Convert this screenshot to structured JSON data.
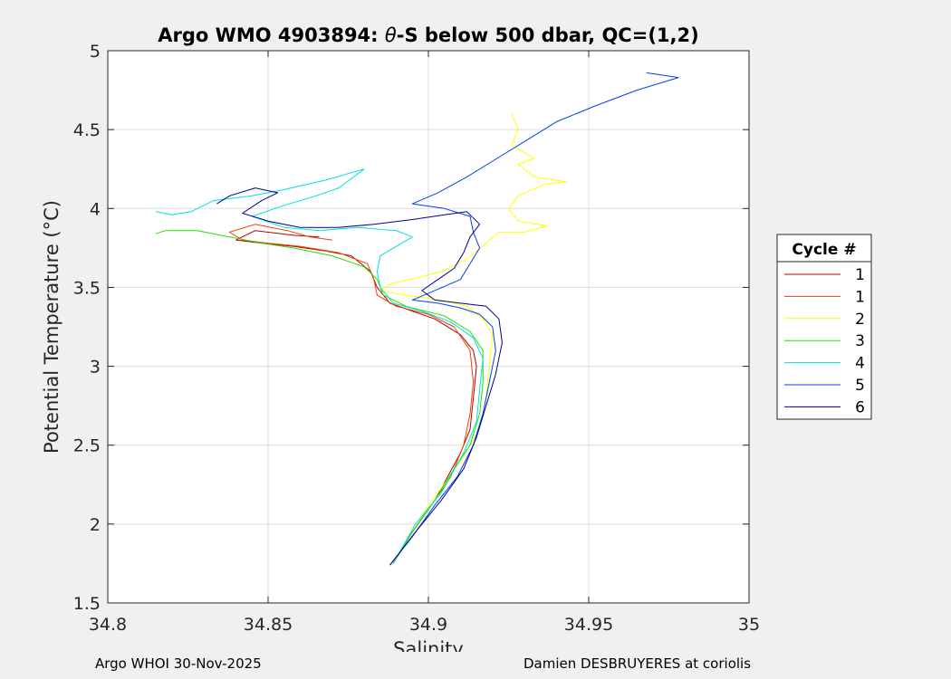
{
  "chart_data": {
    "type": "line",
    "title_prefix": "Argo WMO 4903894: ",
    "title_symbol": "θ",
    "title_suffix": "-S below 500 dbar,  QC=(1,2)",
    "xlabel": "Salinity",
    "ylabel": "Potential Temperature (°C)",
    "xlim": [
      34.8,
      35.0
    ],
    "ylim": [
      1.5,
      5.0
    ],
    "xticks": [
      "34.8",
      "34.85",
      "34.9",
      "34.95",
      "35"
    ],
    "yticks": [
      "1.5",
      "2",
      "2.5",
      "3",
      "3.5",
      "4",
      "4.5",
      "5"
    ],
    "grid": true,
    "legend": {
      "title": "Cycle #",
      "position": "right"
    },
    "series": [
      {
        "name": "1",
        "color": "#b80000",
        "points": [
          [
            34.889,
            1.75
          ],
          [
            34.895,
            1.95
          ],
          [
            34.902,
            2.15
          ],
          [
            34.906,
            2.3
          ],
          [
            34.91,
            2.45
          ],
          [
            34.913,
            2.6
          ],
          [
            34.914,
            2.8
          ],
          [
            34.915,
            3.0
          ],
          [
            34.914,
            3.1
          ],
          [
            34.91,
            3.2
          ],
          [
            34.902,
            3.3
          ],
          [
            34.895,
            3.35
          ],
          [
            34.888,
            3.4
          ],
          [
            34.884,
            3.5
          ],
          [
            34.882,
            3.6
          ],
          [
            34.876,
            3.7
          ],
          [
            34.868,
            3.73
          ],
          [
            34.858,
            3.76
          ],
          [
            34.848,
            3.78
          ],
          [
            34.84,
            3.8
          ],
          [
            34.846,
            3.86
          ],
          [
            34.858,
            3.83
          ],
          [
            34.866,
            3.82
          ]
        ]
      },
      {
        "name": "1",
        "color": "#f04000",
        "points": [
          [
            34.889,
            1.75
          ],
          [
            34.895,
            1.95
          ],
          [
            34.902,
            2.15
          ],
          [
            34.907,
            2.3
          ],
          [
            34.911,
            2.5
          ],
          [
            34.913,
            2.7
          ],
          [
            34.914,
            2.9
          ],
          [
            34.913,
            3.1
          ],
          [
            34.908,
            3.25
          ],
          [
            34.9,
            3.33
          ],
          [
            34.89,
            3.38
          ],
          [
            34.884,
            3.45
          ],
          [
            34.883,
            3.55
          ],
          [
            34.881,
            3.65
          ],
          [
            34.872,
            3.72
          ],
          [
            34.86,
            3.76
          ],
          [
            34.85,
            3.78
          ],
          [
            34.842,
            3.8
          ],
          [
            34.838,
            3.85
          ],
          [
            34.846,
            3.9
          ],
          [
            34.856,
            3.86
          ],
          [
            34.863,
            3.82
          ],
          [
            34.87,
            3.8
          ]
        ]
      },
      {
        "name": "2",
        "color": "#ffff00",
        "points": [
          [
            34.889,
            1.75
          ],
          [
            34.896,
            2.0
          ],
          [
            34.903,
            2.2
          ],
          [
            34.91,
            2.4
          ],
          [
            34.916,
            2.6
          ],
          [
            34.918,
            2.8
          ],
          [
            34.919,
            3.0
          ],
          [
            34.92,
            3.2
          ],
          [
            34.917,
            3.3
          ],
          [
            34.912,
            3.38
          ],
          [
            34.904,
            3.42
          ],
          [
            34.893,
            3.45
          ],
          [
            34.885,
            3.48
          ],
          [
            34.888,
            3.52
          ],
          [
            34.896,
            3.56
          ],
          [
            34.904,
            3.6
          ],
          [
            34.912,
            3.68
          ],
          [
            34.918,
            3.78
          ],
          [
            34.922,
            3.85
          ],
          [
            34.93,
            3.85
          ],
          [
            34.937,
            3.89
          ],
          [
            34.928,
            3.92
          ],
          [
            34.925,
            4.0
          ],
          [
            34.928,
            4.08
          ],
          [
            34.936,
            4.15
          ],
          [
            34.943,
            4.17
          ],
          [
            34.933,
            4.2
          ],
          [
            34.928,
            4.28
          ],
          [
            34.933,
            4.32
          ],
          [
            34.926,
            4.4
          ],
          [
            34.928,
            4.5
          ],
          [
            34.926,
            4.6
          ]
        ]
      },
      {
        "name": "3",
        "color": "#20e000",
        "points": [
          [
            34.889,
            1.75
          ],
          [
            34.895,
            1.95
          ],
          [
            34.902,
            2.15
          ],
          [
            34.908,
            2.35
          ],
          [
            34.913,
            2.5
          ],
          [
            34.916,
            2.7
          ],
          [
            34.917,
            2.9
          ],
          [
            34.917,
            3.1
          ],
          [
            34.913,
            3.22
          ],
          [
            34.905,
            3.32
          ],
          [
            34.893,
            3.38
          ],
          [
            34.886,
            3.45
          ],
          [
            34.884,
            3.55
          ],
          [
            34.88,
            3.63
          ],
          [
            34.87,
            3.7
          ],
          [
            34.858,
            3.75
          ],
          [
            34.848,
            3.78
          ],
          [
            34.838,
            3.82
          ],
          [
            34.828,
            3.86
          ],
          [
            34.818,
            3.86
          ],
          [
            34.815,
            3.84
          ]
        ]
      },
      {
        "name": "4",
        "color": "#00e0e0",
        "points": [
          [
            34.889,
            1.75
          ],
          [
            34.896,
            2.0
          ],
          [
            34.904,
            2.2
          ],
          [
            34.911,
            2.45
          ],
          [
            34.915,
            2.65
          ],
          [
            34.916,
            2.85
          ],
          [
            34.917,
            3.05
          ],
          [
            34.914,
            3.18
          ],
          [
            34.907,
            3.28
          ],
          [
            34.898,
            3.35
          ],
          [
            34.889,
            3.4
          ],
          [
            34.885,
            3.5
          ],
          [
            34.884,
            3.6
          ],
          [
            34.885,
            3.7
          ],
          [
            34.895,
            3.82
          ],
          [
            34.89,
            3.86
          ],
          [
            34.878,
            3.88
          ],
          [
            34.866,
            3.86
          ],
          [
            34.855,
            3.88
          ],
          [
            34.845,
            3.95
          ],
          [
            34.855,
            4.02
          ],
          [
            34.865,
            4.08
          ],
          [
            34.872,
            4.13
          ],
          [
            34.88,
            4.25
          ],
          [
            34.868,
            4.18
          ],
          [
            34.855,
            4.12
          ],
          [
            34.845,
            4.08
          ],
          [
            34.833,
            4.05
          ],
          [
            34.826,
            3.98
          ],
          [
            34.82,
            3.96
          ],
          [
            34.815,
            3.98
          ]
        ]
      },
      {
        "name": "5",
        "color": "#0040f0",
        "points": [
          [
            34.888,
            1.74
          ],
          [
            34.895,
            1.92
          ],
          [
            34.902,
            2.12
          ],
          [
            34.909,
            2.3
          ],
          [
            34.914,
            2.5
          ],
          [
            34.917,
            2.7
          ],
          [
            34.919,
            2.9
          ],
          [
            34.921,
            3.1
          ],
          [
            34.92,
            3.25
          ],
          [
            34.916,
            3.33
          ],
          [
            34.91,
            3.37
          ],
          [
            34.903,
            3.4
          ],
          [
            34.895,
            3.42
          ],
          [
            34.902,
            3.48
          ],
          [
            34.91,
            3.55
          ],
          [
            34.913,
            3.65
          ],
          [
            34.916,
            3.75
          ],
          [
            34.914,
            3.85
          ],
          [
            34.913,
            3.95
          ],
          [
            34.905,
            4.0
          ],
          [
            34.895,
            4.03
          ],
          [
            34.903,
            4.1
          ],
          [
            34.912,
            4.2
          ],
          [
            34.92,
            4.3
          ],
          [
            34.932,
            4.45
          ],
          [
            34.94,
            4.55
          ],
          [
            34.952,
            4.65
          ],
          [
            34.965,
            4.75
          ],
          [
            34.978,
            4.83
          ],
          [
            34.968,
            4.86
          ]
        ]
      },
      {
        "name": "6",
        "color": "#000090",
        "points": [
          [
            34.888,
            1.74
          ],
          [
            34.896,
            1.95
          ],
          [
            34.904,
            2.15
          ],
          [
            34.911,
            2.35
          ],
          [
            34.915,
            2.55
          ],
          [
            34.918,
            2.75
          ],
          [
            34.921,
            2.95
          ],
          [
            34.923,
            3.15
          ],
          [
            34.922,
            3.3
          ],
          [
            34.918,
            3.38
          ],
          [
            34.91,
            3.4
          ],
          [
            34.902,
            3.42
          ],
          [
            34.898,
            3.48
          ],
          [
            34.903,
            3.55
          ],
          [
            34.908,
            3.62
          ],
          [
            34.911,
            3.72
          ],
          [
            34.913,
            3.82
          ],
          [
            34.916,
            3.9
          ],
          [
            34.912,
            3.98
          ],
          [
            34.905,
            3.96
          ],
          [
            34.895,
            3.93
          ],
          [
            34.883,
            3.9
          ],
          [
            34.872,
            3.88
          ],
          [
            34.86,
            3.88
          ],
          [
            34.85,
            3.92
          ],
          [
            34.842,
            3.97
          ],
          [
            34.848,
            4.05
          ],
          [
            34.853,
            4.1
          ],
          [
            34.846,
            4.13
          ],
          [
            34.838,
            4.08
          ],
          [
            34.834,
            4.03
          ]
        ]
      }
    ]
  },
  "footer": {
    "left": "Argo WHOI 30-Nov-2025",
    "right": "Damien DESBRUYERES at coriolis"
  }
}
